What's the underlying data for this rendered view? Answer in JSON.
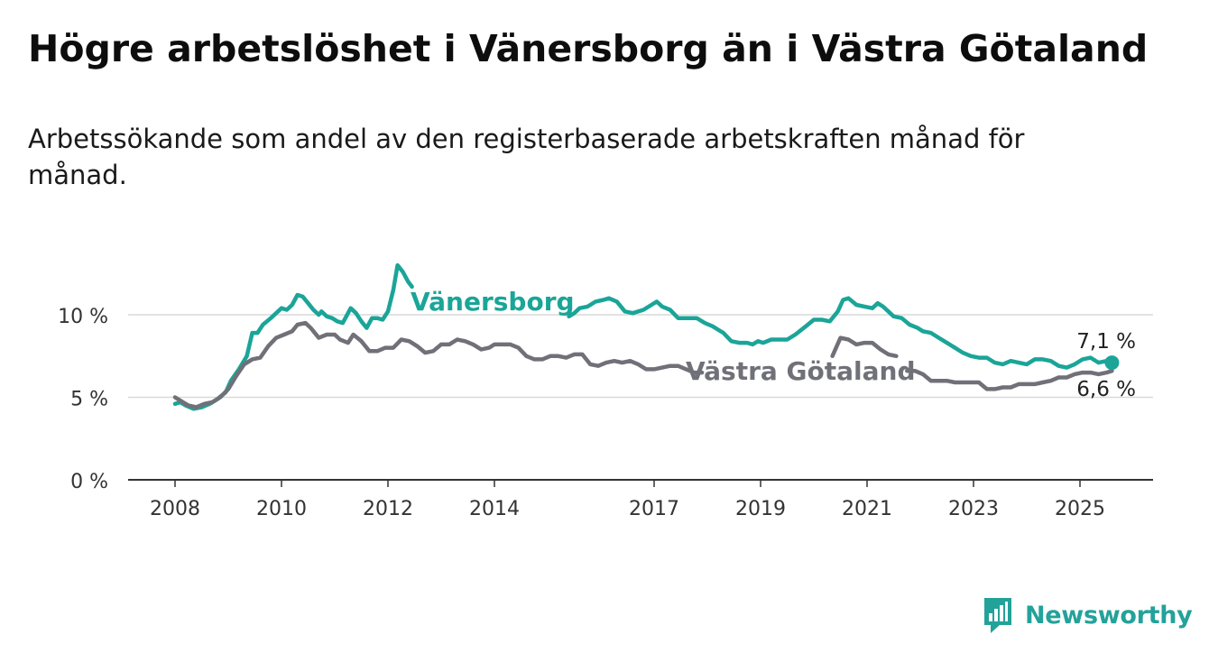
{
  "header": {
    "title": "Högre arbetslöshet i Vänersborg än i Västra Götaland",
    "subtitle": "Arbetssökande som andel av den registerbaserade arbetskraften månad för månad."
  },
  "brand": {
    "name": "Newsworthy",
    "logo_icon": "newsworthy-logo-icon",
    "color": "#23a29a"
  },
  "chart_data": {
    "type": "line",
    "title": "Högre arbetslöshet i Vänersborg än i Västra Götaland",
    "subtitle": "Arbetssökande som andel av den registerbaserade arbetskraften månad för månad.",
    "xlabel": "",
    "ylabel": "",
    "xlim": [
      2007.85,
      2026.5
    ],
    "ylim": [
      0,
      12
    ],
    "y_ticks": [
      {
        "value": 0,
        "label": "0 %"
      },
      {
        "value": 5,
        "label": "5 %"
      },
      {
        "value": 10,
        "label": "10 %"
      }
    ],
    "x_ticks": [
      {
        "value": 2008,
        "label": "2008"
      },
      {
        "value": 2010,
        "label": "2010"
      },
      {
        "value": 2012,
        "label": "2012"
      },
      {
        "value": 2014,
        "label": "2014"
      },
      {
        "value": 2017,
        "label": "2017"
      },
      {
        "value": 2019,
        "label": "2019"
      },
      {
        "value": 2021,
        "label": "2021"
      },
      {
        "value": 2023,
        "label": "2023"
      },
      {
        "value": 2025,
        "label": "2025"
      }
    ],
    "grid": true,
    "legend": "inline labels",
    "series": [
      {
        "name": "Vänersborg",
        "color": "#1aa598",
        "end_label": "7,1 %",
        "points": [
          [
            2008.0,
            4.6
          ],
          [
            2008.1,
            4.7
          ],
          [
            2008.2,
            4.5
          ],
          [
            2008.35,
            4.3
          ],
          [
            2008.5,
            4.4
          ],
          [
            2008.65,
            4.6
          ],
          [
            2008.8,
            4.9
          ],
          [
            2008.95,
            5.3
          ],
          [
            2009.05,
            6.0
          ],
          [
            2009.2,
            6.7
          ],
          [
            2009.35,
            7.5
          ],
          [
            2009.45,
            8.9
          ],
          [
            2009.55,
            8.9
          ],
          [
            2009.65,
            9.4
          ],
          [
            2009.8,
            9.8
          ],
          [
            2009.9,
            10.1
          ],
          [
            2010.0,
            10.4
          ],
          [
            2010.1,
            10.3
          ],
          [
            2010.2,
            10.6
          ],
          [
            2010.3,
            11.2
          ],
          [
            2010.4,
            11.1
          ],
          [
            2010.5,
            10.7
          ],
          [
            2010.6,
            10.3
          ],
          [
            2010.7,
            10.0
          ],
          [
            2010.75,
            10.2
          ],
          [
            2010.85,
            9.9
          ],
          [
            2010.95,
            9.8
          ],
          [
            2011.05,
            9.6
          ],
          [
            2011.15,
            9.5
          ],
          [
            2011.3,
            10.4
          ],
          [
            2011.4,
            10.1
          ],
          [
            2011.5,
            9.6
          ],
          [
            2011.6,
            9.2
          ],
          [
            2011.7,
            9.8
          ],
          [
            2011.8,
            9.8
          ],
          [
            2011.9,
            9.7
          ],
          [
            2012.0,
            10.2
          ],
          [
            2012.1,
            11.5
          ],
          [
            2012.18,
            13.0
          ],
          [
            2012.28,
            12.6
          ],
          [
            2012.38,
            12.0
          ],
          [
            2012.45,
            11.7
          ]
        ],
        "points_b": [
          [
            2015.4,
            9.9
          ],
          [
            2015.5,
            10.1
          ],
          [
            2015.6,
            10.4
          ],
          [
            2015.75,
            10.5
          ],
          [
            2015.9,
            10.8
          ],
          [
            2016.05,
            10.9
          ],
          [
            2016.15,
            11.0
          ],
          [
            2016.3,
            10.8
          ],
          [
            2016.45,
            10.2
          ],
          [
            2016.6,
            10.1
          ],
          [
            2016.8,
            10.3
          ],
          [
            2016.95,
            10.6
          ],
          [
            2017.05,
            10.8
          ],
          [
            2017.15,
            10.5
          ],
          [
            2017.3,
            10.3
          ],
          [
            2017.45,
            9.8
          ],
          [
            2017.6,
            9.8
          ],
          [
            2017.8,
            9.8
          ],
          [
            2017.95,
            9.5
          ],
          [
            2018.1,
            9.3
          ],
          [
            2018.2,
            9.1
          ],
          [
            2018.3,
            8.9
          ],
          [
            2018.45,
            8.4
          ],
          [
            2018.6,
            8.3
          ],
          [
            2018.75,
            8.3
          ],
          [
            2018.85,
            8.2
          ],
          [
            2018.95,
            8.4
          ],
          [
            2019.05,
            8.3
          ],
          [
            2019.2,
            8.5
          ],
          [
            2019.35,
            8.5
          ],
          [
            2019.5,
            8.5
          ],
          [
            2019.65,
            8.8
          ],
          [
            2019.85,
            9.3
          ],
          [
            2020.0,
            9.7
          ],
          [
            2020.15,
            9.7
          ],
          [
            2020.3,
            9.6
          ],
          [
            2020.45,
            10.2
          ],
          [
            2020.55,
            10.9
          ],
          [
            2020.65,
            11.0
          ],
          [
            2020.8,
            10.6
          ],
          [
            2020.95,
            10.5
          ],
          [
            2021.1,
            10.4
          ],
          [
            2021.2,
            10.7
          ],
          [
            2021.3,
            10.5
          ],
          [
            2021.4,
            10.2
          ],
          [
            2021.5,
            9.9
          ],
          [
            2021.65,
            9.8
          ],
          [
            2021.8,
            9.4
          ],
          [
            2021.95,
            9.2
          ],
          [
            2022.05,
            9.0
          ],
          [
            2022.2,
            8.9
          ],
          [
            2022.35,
            8.6
          ],
          [
            2022.5,
            8.3
          ],
          [
            2022.65,
            8.0
          ],
          [
            2022.8,
            7.7
          ],
          [
            2022.95,
            7.5
          ],
          [
            2023.1,
            7.4
          ],
          [
            2023.25,
            7.4
          ],
          [
            2023.4,
            7.1
          ],
          [
            2023.55,
            7.0
          ],
          [
            2023.7,
            7.2
          ],
          [
            2023.85,
            7.1
          ],
          [
            2024.0,
            7.0
          ],
          [
            2024.15,
            7.3
          ],
          [
            2024.3,
            7.3
          ],
          [
            2024.45,
            7.2
          ],
          [
            2024.6,
            6.9
          ],
          [
            2024.75,
            6.8
          ],
          [
            2024.9,
            7.0
          ],
          [
            2025.05,
            7.3
          ],
          [
            2025.2,
            7.4
          ],
          [
            2025.35,
            7.1
          ],
          [
            2025.5,
            7.2
          ],
          [
            2025.6,
            7.1
          ]
        ]
      },
      {
        "name": "Västra Götaland",
        "color": "#707078",
        "end_label": "6,6 %",
        "points": [
          [
            2008.0,
            5.0
          ],
          [
            2008.1,
            4.8
          ],
          [
            2008.25,
            4.5
          ],
          [
            2008.4,
            4.4
          ],
          [
            2008.55,
            4.6
          ],
          [
            2008.7,
            4.7
          ],
          [
            2008.85,
            5.0
          ],
          [
            2009.0,
            5.5
          ],
          [
            2009.15,
            6.3
          ],
          [
            2009.3,
            7.0
          ],
          [
            2009.45,
            7.3
          ],
          [
            2009.6,
            7.4
          ],
          [
            2009.75,
            8.1
          ],
          [
            2009.9,
            8.6
          ],
          [
            2010.05,
            8.8
          ],
          [
            2010.2,
            9.0
          ],
          [
            2010.3,
            9.4
          ],
          [
            2010.45,
            9.5
          ],
          [
            2010.55,
            9.2
          ],
          [
            2010.7,
            8.6
          ],
          [
            2010.85,
            8.8
          ],
          [
            2011.0,
            8.8
          ],
          [
            2011.1,
            8.5
          ],
          [
            2011.25,
            8.3
          ],
          [
            2011.35,
            8.8
          ],
          [
            2011.5,
            8.4
          ],
          [
            2011.65,
            7.8
          ],
          [
            2011.8,
            7.8
          ],
          [
            2011.95,
            8.0
          ],
          [
            2012.1,
            8.0
          ],
          [
            2012.25,
            8.5
          ],
          [
            2012.4,
            8.4
          ],
          [
            2012.55,
            8.1
          ],
          [
            2012.7,
            7.7
          ],
          [
            2012.85,
            7.8
          ],
          [
            2013.0,
            8.2
          ],
          [
            2013.15,
            8.2
          ],
          [
            2013.3,
            8.5
          ],
          [
            2013.45,
            8.4
          ],
          [
            2013.6,
            8.2
          ],
          [
            2013.75,
            7.9
          ],
          [
            2013.9,
            8.0
          ],
          [
            2014.0,
            8.2
          ],
          [
            2014.15,
            8.2
          ],
          [
            2014.3,
            8.2
          ],
          [
            2014.45,
            8.0
          ],
          [
            2014.6,
            7.5
          ],
          [
            2014.75,
            7.3
          ],
          [
            2014.9,
            7.3
          ],
          [
            2015.05,
            7.5
          ],
          [
            2015.2,
            7.5
          ],
          [
            2015.35,
            7.4
          ],
          [
            2015.5,
            7.6
          ],
          [
            2015.65,
            7.6
          ],
          [
            2015.8,
            7.0
          ],
          [
            2015.95,
            6.9
          ],
          [
            2016.1,
            7.1
          ],
          [
            2016.25,
            7.2
          ],
          [
            2016.4,
            7.1
          ],
          [
            2016.55,
            7.2
          ],
          [
            2016.7,
            7.0
          ],
          [
            2016.85,
            6.7
          ],
          [
            2017.0,
            6.7
          ],
          [
            2017.15,
            6.8
          ],
          [
            2017.3,
            6.9
          ],
          [
            2017.45,
            6.9
          ],
          [
            2017.6,
            6.7
          ],
          [
            2017.75,
            6.5
          ],
          [
            2017.9,
            6.5
          ]
        ],
        "points_b": [
          [
            2020.35,
            7.5
          ],
          [
            2020.5,
            8.6
          ],
          [
            2020.65,
            8.5
          ],
          [
            2020.8,
            8.2
          ],
          [
            2020.95,
            8.3
          ],
          [
            2021.1,
            8.3
          ],
          [
            2021.25,
            7.9
          ],
          [
            2021.4,
            7.6
          ],
          [
            2021.55,
            7.5
          ]
        ],
        "points_c": [
          [
            2021.75,
            6.6
          ],
          [
            2021.9,
            6.6
          ],
          [
            2022.05,
            6.4
          ],
          [
            2022.2,
            6.0
          ],
          [
            2022.35,
            6.0
          ],
          [
            2022.5,
            6.0
          ],
          [
            2022.65,
            5.9
          ],
          [
            2022.8,
            5.9
          ],
          [
            2022.95,
            5.9
          ],
          [
            2023.1,
            5.9
          ],
          [
            2023.25,
            5.5
          ],
          [
            2023.4,
            5.5
          ],
          [
            2023.55,
            5.6
          ],
          [
            2023.7,
            5.6
          ],
          [
            2023.85,
            5.8
          ],
          [
            2024.0,
            5.8
          ],
          [
            2024.15,
            5.8
          ],
          [
            2024.3,
            5.9
          ],
          [
            2024.45,
            6.0
          ],
          [
            2024.6,
            6.2
          ],
          [
            2024.75,
            6.2
          ],
          [
            2024.9,
            6.4
          ],
          [
            2025.05,
            6.5
          ],
          [
            2025.2,
            6.5
          ],
          [
            2025.35,
            6.4
          ],
          [
            2025.5,
            6.5
          ],
          [
            2025.6,
            6.6
          ]
        ]
      }
    ]
  }
}
